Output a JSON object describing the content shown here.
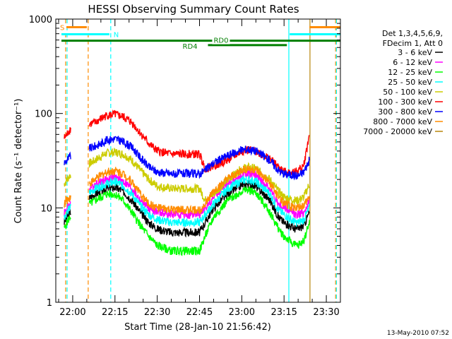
{
  "colors": {
    "background": "#ffffff",
    "axis": "#000000",
    "orange": "#ff8c00",
    "cyan": "#00ffff",
    "green": "#007f00",
    "brown": "#b8860b"
  },
  "footer": {
    "timestamp": "13-May-2010 07:52"
  },
  "chart_data": {
    "type": "line",
    "title": "HESSI Observing Summary Count Rates",
    "xlabel": "Start Time (28-Jan-10 21:56:42)",
    "ylabel": "Count Rate (s⁻¹ detector⁻¹)",
    "y_scale": "log",
    "xlim": [
      "21:54",
      "23:35"
    ],
    "ylim": [
      1,
      1000
    ],
    "x_ticks": [
      "22:00",
      "22:15",
      "22:30",
      "22:45",
      "23:00",
      "23:15",
      "23:30"
    ],
    "y_ticks": [
      "1",
      "10",
      "100",
      "1000"
    ],
    "legend_position": "right",
    "legend_header": [
      "Det 1,3,4,5,6,9,",
      "FDecim 1, Att 0"
    ],
    "series": [
      {
        "name": "3 - 6 keV",
        "color": "#000000",
        "x": [
          "21:57",
          "21:58",
          "21:59",
          "22:08",
          "22:10",
          "22:12",
          "22:15",
          "22:18",
          "22:21",
          "22:24",
          "22:27",
          "22:30",
          "22:35",
          "22:40",
          "22:45",
          "22:47",
          "22:50",
          "22:55",
          "23:00",
          "23:02",
          "23:05",
          "23:10",
          "23:13",
          "23:15",
          "23:19",
          "23:20",
          "23:22",
          "23:24"
        ],
        "y": [
          7,
          8,
          9,
          14,
          15,
          16,
          16.5,
          15,
          12,
          9,
          7,
          6,
          5.5,
          5.5,
          5.5,
          7,
          10,
          14,
          17.5,
          18,
          17,
          12,
          8,
          7,
          6,
          6,
          6.5,
          9
        ]
      },
      {
        "name": "6 - 12 keV",
        "color": "#ff00ff",
        "x": [
          "21:57",
          "21:58",
          "21:59",
          "22:08",
          "22:10",
          "22:12",
          "22:15",
          "22:18",
          "22:21",
          "22:24",
          "22:27",
          "22:30",
          "22:35",
          "22:40",
          "22:45",
          "22:47",
          "22:50",
          "22:55",
          "23:00",
          "23:02",
          "23:05",
          "23:10",
          "23:13",
          "23:15",
          "23:19",
          "23:20",
          "23:22",
          "23:24"
        ],
        "y": [
          9,
          10,
          11,
          18,
          19,
          20,
          21,
          19,
          16,
          12,
          10,
          9,
          8.5,
          8.5,
          8.5,
          10,
          13,
          18,
          22,
          23,
          22,
          16,
          11,
          10,
          8.5,
          8.5,
          9,
          12
        ]
      },
      {
        "name": "12 - 25 keV",
        "color": "#00ff00",
        "x": [
          "21:57",
          "21:58",
          "21:59",
          "22:08",
          "22:10",
          "22:12",
          "22:15",
          "22:18",
          "22:21",
          "22:24",
          "22:27",
          "22:30",
          "22:35",
          "22:40",
          "22:45",
          "22:47",
          "22:50",
          "22:55",
          "23:00",
          "23:02",
          "23:05",
          "23:10",
          "23:13",
          "23:15",
          "23:19",
          "23:20",
          "23:22",
          "23:24"
        ],
        "y": [
          6,
          7,
          8,
          12,
          13,
          14,
          14,
          12,
          9,
          6.5,
          5,
          4,
          3.5,
          3.5,
          3.5,
          5,
          8,
          12,
          15,
          15.5,
          14.5,
          9,
          6,
          5,
          4,
          4,
          4.5,
          7
        ]
      },
      {
        "name": "25 - 50 keV",
        "color": "#00ffff",
        "x": [
          "21:57",
          "21:58",
          "21:59",
          "22:08",
          "22:10",
          "22:12",
          "22:15",
          "22:18",
          "22:21",
          "22:24",
          "22:27",
          "22:30",
          "22:35",
          "22:40",
          "22:45",
          "22:47",
          "22:50",
          "22:55",
          "23:00",
          "23:02",
          "23:05",
          "23:10",
          "23:13",
          "23:15",
          "23:19",
          "23:20",
          "23:22",
          "23:24"
        ],
        "y": [
          8,
          9,
          10,
          16,
          17,
          18,
          19,
          17,
          14,
          10.5,
          8.5,
          7.5,
          7,
          7,
          7,
          8.5,
          11,
          16,
          19.5,
          20,
          19,
          14,
          9.5,
          8.5,
          7,
          7,
          7.5,
          10
        ]
      },
      {
        "name": "50 - 100 keV",
        "color": "#cccc00",
        "x": [
          "21:57",
          "21:58",
          "21:59",
          "22:08",
          "22:10",
          "22:12",
          "22:15",
          "22:18",
          "22:21",
          "22:24",
          "22:27",
          "22:30",
          "22:35",
          "22:40",
          "22:45",
          "22:47",
          "22:50",
          "22:55",
          "23:00",
          "23:02",
          "23:05",
          "23:10",
          "23:13",
          "23:15",
          "23:19",
          "23:20",
          "23:22",
          "23:24"
        ],
        "y": [
          18,
          20,
          22,
          32,
          35,
          38,
          39,
          37,
          32,
          25,
          20,
          17,
          16,
          16,
          16,
          12,
          14,
          20,
          26,
          27,
          26,
          20,
          15,
          13,
          12,
          12,
          13,
          18
        ]
      },
      {
        "name": "100 - 300 keV",
        "color": "#ff0000",
        "x": [
          "21:57",
          "21:58",
          "21:59",
          "22:08",
          "22:10",
          "22:12",
          "22:15",
          "22:18",
          "22:21",
          "22:24",
          "22:27",
          "22:30",
          "22:35",
          "22:40",
          "22:45",
          "22:47",
          "22:50",
          "22:55",
          "23:00",
          "23:02",
          "23:05",
          "23:10",
          "23:13",
          "23:15",
          "23:19",
          "23:20",
          "23:22",
          "23:24"
        ],
        "y": [
          55,
          60,
          68,
          80,
          88,
          95,
          98,
          92,
          80,
          62,
          48,
          40,
          37,
          37,
          37,
          26,
          28,
          32,
          40,
          41,
          40,
          33,
          27,
          24,
          24,
          25,
          28,
          60
        ]
      },
      {
        "name": "300 - 800 keV",
        "color": "#0000ff",
        "x": [
          "21:57",
          "21:58",
          "21:59",
          "22:08",
          "22:10",
          "22:12",
          "22:15",
          "22:18",
          "22:21",
          "22:24",
          "22:27",
          "22:30",
          "22:35",
          "22:40",
          "22:45",
          "22:47",
          "22:50",
          "22:55",
          "23:00",
          "23:02",
          "23:05",
          "23:10",
          "23:13",
          "23:15",
          "23:19",
          "23:20",
          "23:22",
          "23:24"
        ],
        "y": [
          30,
          32,
          35,
          45,
          48,
          52,
          54,
          50,
          44,
          34,
          27,
          24,
          23,
          23,
          23,
          25,
          30,
          36,
          41,
          42,
          40,
          32,
          25,
          23,
          22,
          22,
          24,
          32
        ]
      },
      {
        "name": "800 - 7000 keV",
        "color": "#ff8c00",
        "x": [
          "21:57",
          "21:58",
          "21:59",
          "22:08",
          "22:10",
          "22:12",
          "22:15",
          "22:18",
          "22:21",
          "22:24",
          "22:27",
          "22:30",
          "22:35",
          "22:40",
          "22:45",
          "22:47",
          "22:50",
          "22:55",
          "23:00",
          "23:02",
          "23:05",
          "23:10",
          "23:13",
          "23:15",
          "23:19",
          "23:20",
          "23:22",
          "23:24"
        ],
        "y": [
          11,
          12,
          13,
          20,
          22,
          24,
          25,
          23,
          19,
          14,
          11,
          10,
          9.5,
          9.5,
          9.5,
          11,
          15,
          20,
          25,
          26,
          25,
          18,
          13,
          11,
          10,
          10,
          10.5,
          13
        ]
      },
      {
        "name": "7000 - 20000 keV",
        "color": "#b8860b",
        "x": [],
        "y": []
      }
    ],
    "annotations": [
      {
        "label": "S",
        "color": "#ff8c00",
        "type": "hbar",
        "ranges": [
          [
            "21:56",
            "22:05"
          ],
          [
            "23:24",
            "23:35"
          ]
        ],
        "y": 820
      },
      {
        "label": "N",
        "color": "#00ffff",
        "type": "hbar",
        "ranges": [
          [
            "21:56",
            "22:13"
          ],
          [
            "23:17",
            "23:35"
          ]
        ],
        "y": 690
      },
      {
        "label": "RD0",
        "color": "#007f00",
        "type": "hbar",
        "ranges": [
          [
            "21:56",
            "23:35"
          ]
        ],
        "y": 590
      },
      {
        "label": "RD4",
        "color": "#007f00",
        "type": "hbar",
        "ranges": [
          [
            "22:48",
            "23:16"
          ]
        ],
        "y": 530
      }
    ],
    "vlines": [
      {
        "x": "21:57.5",
        "color": "#ff8c00",
        "dash": true
      },
      {
        "x": "21:58",
        "color": "#00ffff",
        "dash": true
      },
      {
        "x": "22:05.5",
        "color": "#ff8c00",
        "dash": true
      },
      {
        "x": "22:13.5",
        "color": "#00ffff",
        "dash": true
      },
      {
        "x": "23:16.7",
        "color": "#00ffff",
        "dash": false
      },
      {
        "x": "23:24.2",
        "color": "#b8860b",
        "dash": false
      },
      {
        "x": "23:33.3",
        "color": "#ff8c00",
        "dash": true
      },
      {
        "x": "23:33.6",
        "color": "#00ffff",
        "dash": true
      }
    ]
  }
}
